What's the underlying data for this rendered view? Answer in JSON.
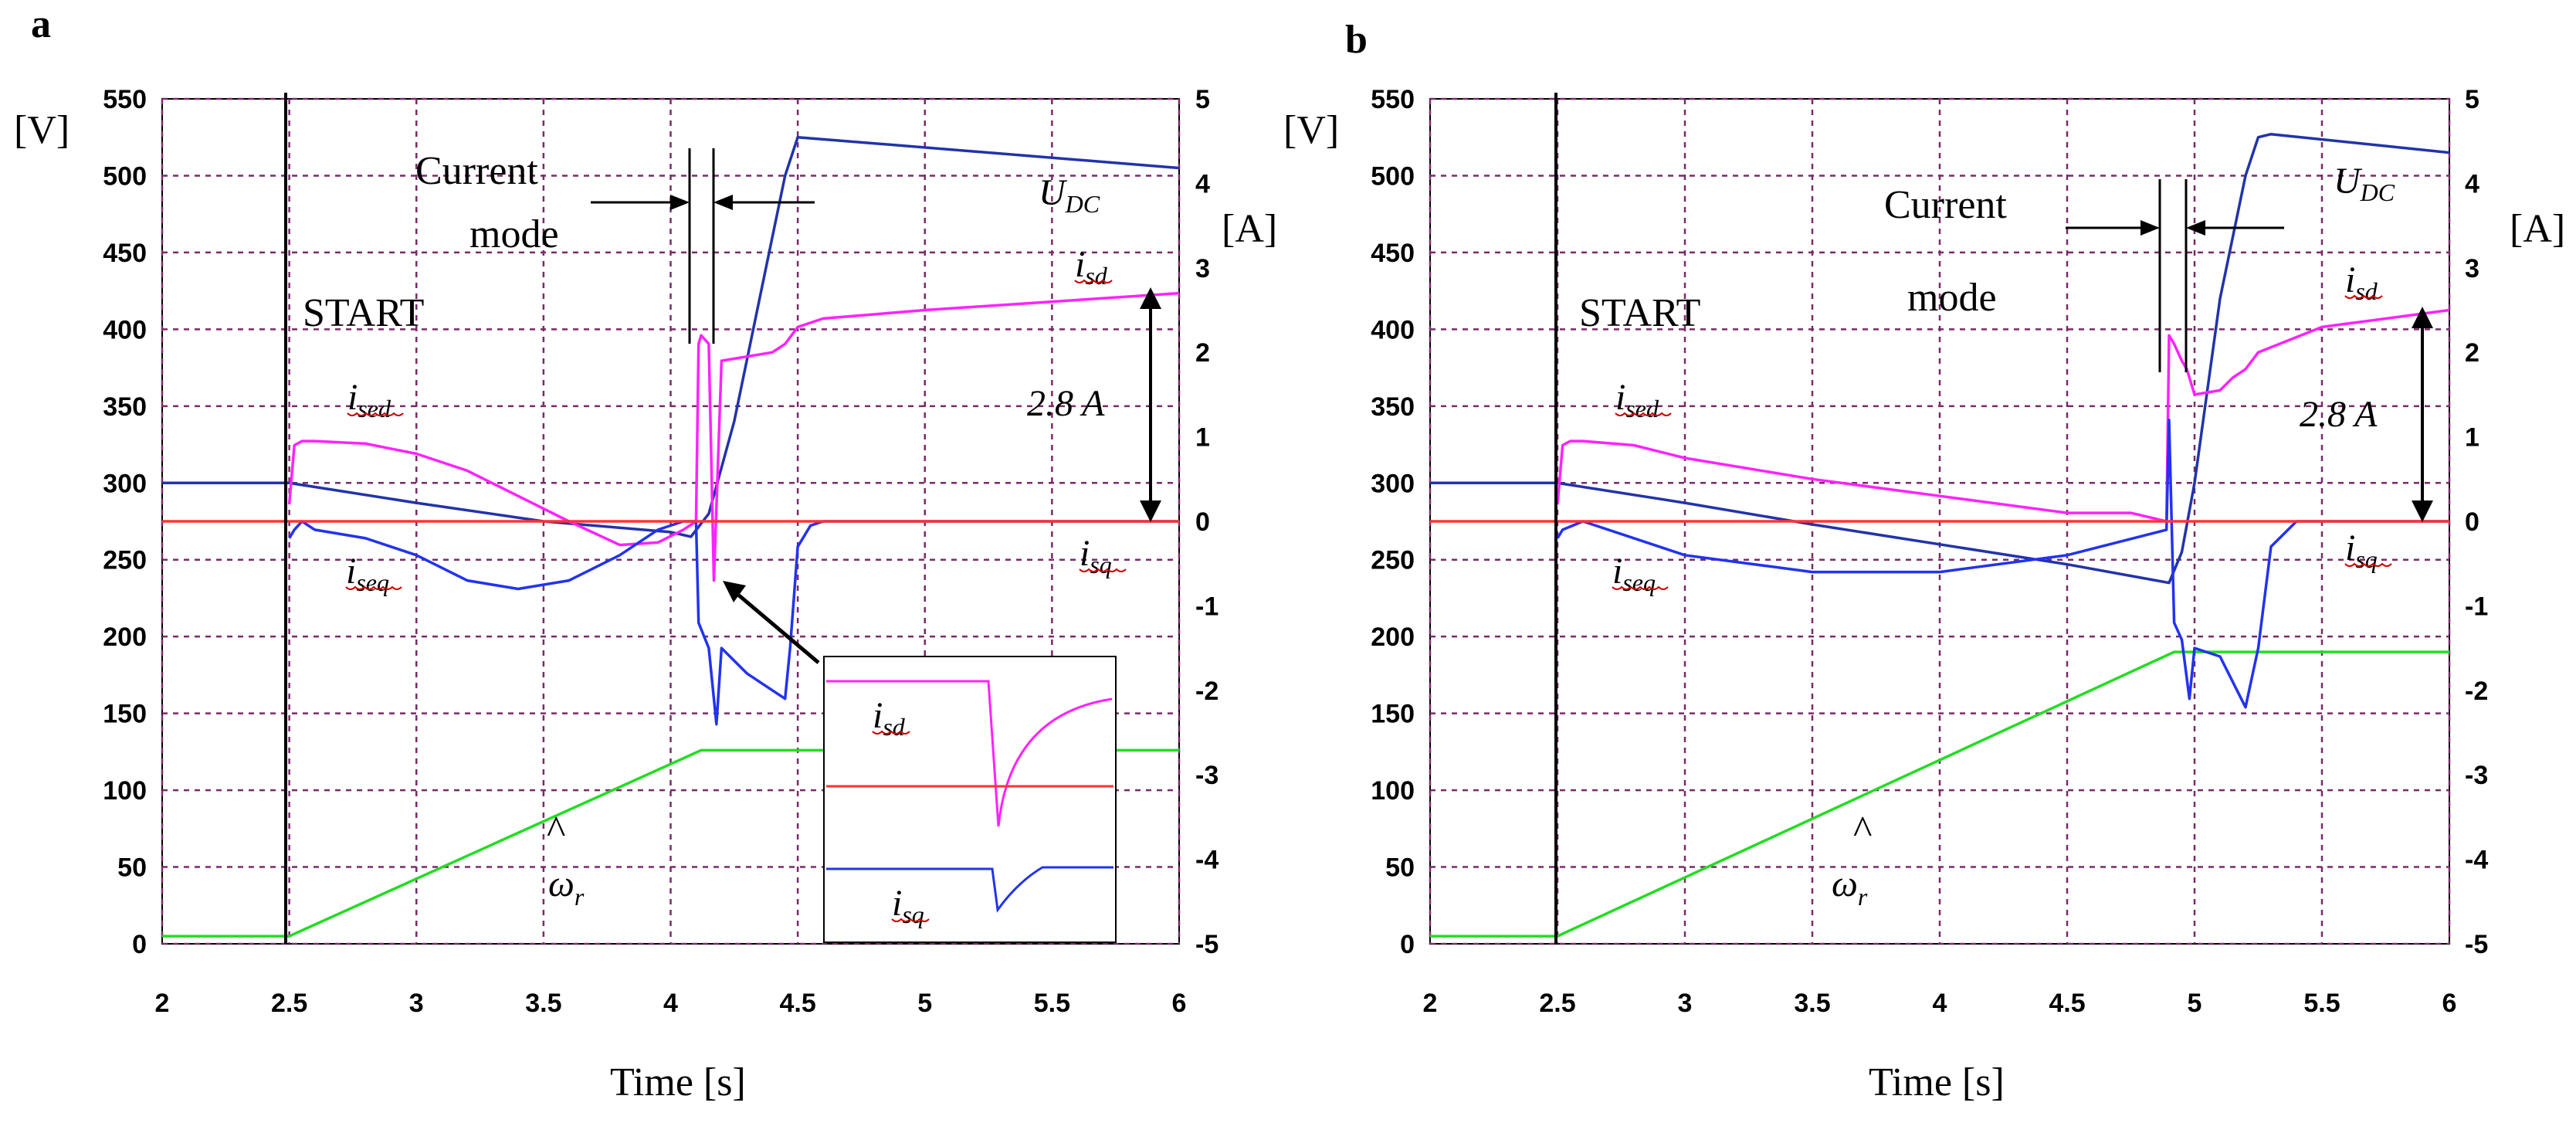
{
  "colors": {
    "iseq": "#2233ee",
    "ised": "#ff22ff",
    "isd": "#ff22ff",
    "isq": "#2233ee",
    "udc": "#2233aa",
    "omega": "#22dd22",
    "zero": "#ff3333",
    "marker": "#000000",
    "grid": "#7a2a6a"
  },
  "chart_data": [
    {
      "type": "line",
      "panel_label": "a",
      "xlabel": "Time [s]",
      "xlim": [
        2,
        6
      ],
      "x_ticks": [
        "2",
        "2.5",
        "3",
        "3.5",
        "4",
        "4.5",
        "5",
        "5.5",
        "6"
      ],
      "y_left_unit": "[V]",
      "ylim_left": [
        0,
        550
      ],
      "y_left_ticks": [
        "0",
        "50",
        "100",
        "150",
        "200",
        "250",
        "300",
        "350",
        "400",
        "450",
        "500",
        "550"
      ],
      "y_right_unit": "[A]",
      "ylim_right": [
        -5,
        5
      ],
      "y_right_ticks": [
        "-5",
        "-4",
        "-3",
        "-2",
        "-1",
        "0",
        "1",
        "2",
        "3",
        "4",
        "5"
      ],
      "annotations": {
        "start": "START",
        "current_mode_1": "Current",
        "current_mode_2": "mode",
        "delta": "2.8 A",
        "udc_main": "U",
        "udc_sub": "DC",
        "isd_main": "i",
        "isd_sub": "sd",
        "ised_main": "i",
        "ised_sub": "sed",
        "iseq_main": "i",
        "iseq_sub": "seq",
        "isq_main": "i",
        "isq_sub": "sq",
        "omega": "ω",
        "omega_sub": "r",
        "omega_hat": "^"
      },
      "inset": {
        "isd_main": "i",
        "isd_sub": "sd",
        "isq_main": "i",
        "isq_sub": "sq"
      },
      "series": [
        {
          "name": "U_DC",
          "axis": "left",
          "color": "#2233aa",
          "x": [
            2,
            2.5,
            3.0,
            3.5,
            4.0,
            4.08,
            4.15,
            4.25,
            4.35,
            4.45,
            4.5,
            6.0
          ],
          "y": [
            300,
            300,
            287,
            275,
            268,
            265,
            280,
            340,
            420,
            500,
            525,
            505
          ]
        },
        {
          "name": "omega_r_hat",
          "axis": "left",
          "color": "#22dd22",
          "x": [
            2,
            2.5,
            4.12,
            6.0
          ],
          "y": [
            5,
            5,
            126,
            126
          ]
        },
        {
          "name": "i_sed/i_sd",
          "axis": "right",
          "color": "#ff22ff",
          "x": [
            2.5,
            2.52,
            2.55,
            2.6,
            2.8,
            3.0,
            3.2,
            3.4,
            3.6,
            3.8,
            3.95,
            4.05,
            4.1,
            4.11,
            4.12,
            4.15,
            4.17,
            4.2,
            4.4,
            4.45,
            4.5,
            4.6,
            5.0,
            5.5,
            6.0
          ],
          "y": [
            0.2,
            0.9,
            0.95,
            0.95,
            0.92,
            0.8,
            0.6,
            0.3,
            0,
            -0.28,
            -0.25,
            -0.1,
            0,
            2.1,
            2.2,
            2.1,
            -0.7,
            1.9,
            2.0,
            2.1,
            2.3,
            2.4,
            2.5,
            2.6,
            2.7
          ]
        },
        {
          "name": "i_seq/i_sq",
          "axis": "right",
          "color": "#2233ee",
          "x": [
            2.5,
            2.52,
            2.55,
            2.6,
            2.8,
            3.0,
            3.2,
            3.4,
            3.6,
            3.8,
            3.95,
            4.05,
            4.1,
            4.11,
            4.15,
            4.18,
            4.2,
            4.3,
            4.4,
            4.45,
            4.47,
            4.5,
            4.55,
            4.6,
            5.0,
            6.0
          ],
          "y": [
            -0.2,
            -0.1,
            0,
            -0.1,
            -0.2,
            -0.4,
            -0.7,
            -0.8,
            -0.7,
            -0.4,
            -0.1,
            0,
            0,
            -1.2,
            -1.5,
            -2.4,
            -1.5,
            -1.8,
            -2.0,
            -2.1,
            -1.5,
            -0.3,
            -0.05,
            0,
            0,
            0
          ]
        },
        {
          "name": "zero",
          "axis": "right",
          "color": "#ff3333",
          "x": [
            2,
            6
          ],
          "y": [
            0,
            0
          ]
        }
      ]
    },
    {
      "type": "line",
      "panel_label": "b",
      "xlabel": "Time [s]",
      "xlim": [
        2,
        6
      ],
      "x_ticks": [
        "2",
        "2.5",
        "3",
        "3.5",
        "4",
        "4.5",
        "5",
        "5.5",
        "6"
      ],
      "y_left_unit": "[V]",
      "ylim_left": [
        0,
        550
      ],
      "y_left_ticks": [
        "0",
        "50",
        "100",
        "150",
        "200",
        "250",
        "300",
        "350",
        "400",
        "450",
        "500",
        "550"
      ],
      "y_right_unit": "[A]",
      "ylim_right": [
        -5,
        5
      ],
      "y_right_ticks": [
        "-5",
        "-4",
        "-3",
        "-2",
        "-1",
        "0",
        "1",
        "2",
        "3",
        "4",
        "5"
      ],
      "annotations": {
        "start": "START",
        "current_mode_1": "Current",
        "current_mode_2": "mode",
        "delta": "2.8 A",
        "udc_main": "U",
        "udc_sub": "DC",
        "isd_main": "i",
        "isd_sub": "sd",
        "ised_main": "i",
        "ised_sub": "sed",
        "iseq_main": "i",
        "iseq_sub": "seq",
        "isq_main": "i",
        "isq_sub": "sq",
        "omega": "ω",
        "omega_sub": "r",
        "omega_hat": "^"
      },
      "series": [
        {
          "name": "U_DC",
          "axis": "left",
          "color": "#2233aa",
          "x": [
            2,
            2.5,
            3.0,
            3.5,
            4.0,
            4.5,
            4.9,
            4.95,
            5.0,
            5.1,
            5.2,
            5.25,
            5.3,
            6.0
          ],
          "y": [
            300,
            300,
            287,
            273,
            260,
            247,
            235,
            255,
            300,
            420,
            500,
            525,
            527,
            515
          ]
        },
        {
          "name": "omega_r_hat",
          "axis": "left",
          "color": "#22dd22",
          "x": [
            2,
            2.5,
            4.92,
            6.0
          ],
          "y": [
            5,
            5,
            190,
            190
          ]
        },
        {
          "name": "i_sed/i_sd",
          "axis": "right",
          "color": "#ff22ff",
          "x": [
            2.5,
            2.52,
            2.55,
            2.6,
            2.8,
            3.0,
            3.5,
            4.0,
            4.5,
            4.75,
            4.89,
            4.9,
            4.92,
            4.95,
            4.97,
            5.0,
            5.1,
            5.15,
            5.2,
            5.25,
            5.5,
            6.0
          ],
          "y": [
            0.2,
            0.9,
            0.95,
            0.95,
            0.9,
            0.75,
            0.5,
            0.3,
            0.1,
            0.1,
            0,
            2.2,
            2.1,
            1.9,
            1.8,
            1.5,
            1.55,
            1.7,
            1.8,
            2.0,
            2.3,
            2.5
          ]
        },
        {
          "name": "i_seq/i_sq",
          "axis": "right",
          "color": "#2233ee",
          "x": [
            2.5,
            2.52,
            2.6,
            3.0,
            3.5,
            4.0,
            4.5,
            4.89,
            4.9,
            4.92,
            4.95,
            4.98,
            5.0,
            5.1,
            5.2,
            5.25,
            5.3,
            5.4,
            6.0
          ],
          "y": [
            -0.2,
            -0.1,
            0,
            -0.4,
            -0.6,
            -0.6,
            -0.4,
            -0.1,
            1.2,
            -1.2,
            -1.4,
            -2.1,
            -1.5,
            -1.6,
            -2.2,
            -1.5,
            -0.3,
            0,
            0
          ]
        },
        {
          "name": "zero",
          "axis": "right",
          "color": "#ff3333",
          "x": [
            2,
            6
          ],
          "y": [
            0,
            0
          ]
        }
      ]
    }
  ]
}
